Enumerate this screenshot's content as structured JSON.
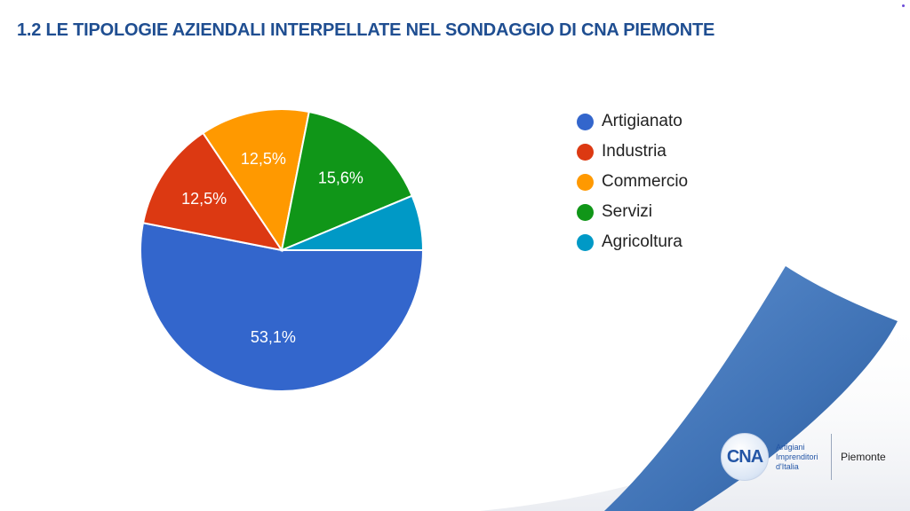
{
  "page": {
    "title": "1.2 LE TIPOLOGIE AZIENDALI INTERPELLATE NEL SONDAGGIO DI CNA PIEMONTE"
  },
  "chart_data": {
    "type": "pie",
    "title": "",
    "slices": [
      {
        "label": "Artigianato",
        "value": 53.1,
        "display": "53,1%",
        "color": "#3366cc"
      },
      {
        "label": "Industria",
        "value": 12.5,
        "display": "12,5%",
        "color": "#dc3912"
      },
      {
        "label": "Commercio",
        "value": 12.5,
        "display": "12,5%",
        "color": "#ff9900"
      },
      {
        "label": "Servizi",
        "value": 15.6,
        "display": "15,6%",
        "color": "#109618"
      },
      {
        "label": "Agricoltura",
        "value": 6.3,
        "display": "",
        "color": "#0099c6"
      }
    ],
    "legend_position": "right"
  },
  "logo": {
    "mark": "CNA",
    "text_line1": "Artigiani",
    "text_line2": "Imprenditori",
    "text_line3": "d'Italia",
    "region": "Piemonte"
  },
  "colors": {
    "title": "#1f4e91",
    "curl": "#3d6fb0"
  }
}
